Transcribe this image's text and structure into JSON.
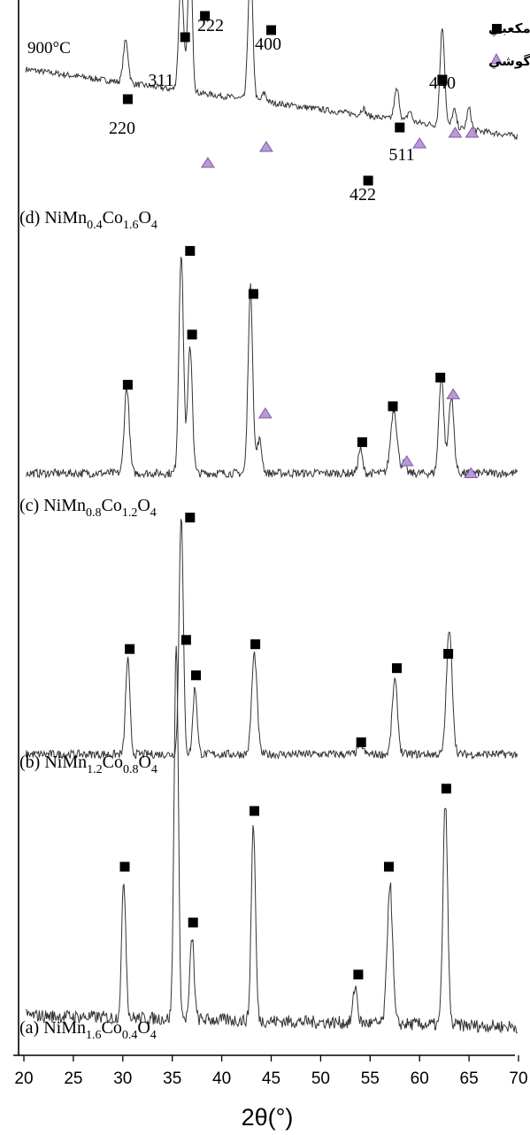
{
  "chart_data": {
    "type": "line",
    "title": "",
    "xlabel": "2θ(°)",
    "ylabel": "",
    "xlim": [
      20,
      70
    ],
    "xticks": [
      "20",
      "25",
      "30",
      "35",
      "40",
      "45",
      "50",
      "55",
      "60",
      "65",
      "70"
    ],
    "annotation_temperature": "900°C",
    "legend": [
      {
        "label": "مکعبي",
        "marker": "square",
        "color": "#000000"
      },
      {
        "label": "چارگوشي",
        "marker": "triangle",
        "color": "#b89ad6"
      }
    ],
    "hkl_labels": [
      {
        "text": "220",
        "x": 30.3
      },
      {
        "text": "311",
        "x": 35.7
      },
      {
        "text": "222",
        "x": 37.2
      },
      {
        "text": "400",
        "x": 43.3
      },
      {
        "text": "422",
        "x": 54.0
      },
      {
        "text": "511",
        "x": 57.3
      },
      {
        "text": "440",
        "x": 62.5
      }
    ],
    "series": [
      {
        "name": "(d) NiMn0.4Co1.6O4",
        "label_parts": {
          "a": "(d) NiMn",
          "s1": "0.4",
          "b": "Co",
          "s2": "1.6",
          "c": "O",
          "s3": "4"
        },
        "baseline_left": 0.66,
        "baseline_right": 0.28,
        "peaks": [
          {
            "x": 30.3,
            "h": 0.24,
            "w": 0.35
          },
          {
            "x": 35.9,
            "h": 0.62,
            "w": 0.35
          },
          {
            "x": 36.8,
            "h": 0.85,
            "w": 0.3
          },
          {
            "x": 42.9,
            "h": 0.78,
            "w": 0.33
          },
          {
            "x": 44.3,
            "h": 0.05,
            "w": 0.3
          },
          {
            "x": 54.3,
            "h": 0.04,
            "w": 0.3
          },
          {
            "x": 57.7,
            "h": 0.17,
            "w": 0.35
          },
          {
            "x": 59.0,
            "h": 0.06,
            "w": 0.3
          },
          {
            "x": 62.3,
            "h": 0.56,
            "w": 0.33
          },
          {
            "x": 63.5,
            "h": 0.1,
            "w": 0.3
          },
          {
            "x": 65.0,
            "h": 0.12,
            "w": 0.3
          }
        ],
        "cubic_markers": [
          30.5,
          36.3,
          38.3,
          45.0,
          54.8,
          58.0,
          62.3
        ],
        "cubic_levels": [
          0.49,
          0.84,
          0.96,
          0.88,
          0.03,
          0.33,
          0.6
        ],
        "tetragonal_markers": [
          38.6,
          44.5,
          60.0,
          63.6,
          65.3
        ],
        "tetragonal_levels": [
          0.13,
          0.22,
          0.24,
          0.3,
          0.3
        ]
      },
      {
        "name": "(c) NiMn0.8Co1.2O4",
        "label_parts": {
          "a": "(c) NiMn",
          "s1": "0.8",
          "b": "Co",
          "s2": "1.2",
          "c": "O",
          "s3": "4"
        },
        "baseline_left": 0.05,
        "baseline_right": 0.05,
        "peaks": [
          {
            "x": 30.4,
            "h": 0.36,
            "w": 0.35
          },
          {
            "x": 35.9,
            "h": 0.92,
            "w": 0.33
          },
          {
            "x": 36.8,
            "h": 0.53,
            "w": 0.33
          },
          {
            "x": 42.9,
            "h": 0.78,
            "w": 0.33
          },
          {
            "x": 43.8,
            "h": 0.14,
            "w": 0.35
          },
          {
            "x": 54.0,
            "h": 0.1,
            "w": 0.3
          },
          {
            "x": 57.4,
            "h": 0.27,
            "w": 0.45
          },
          {
            "x": 58.4,
            "h": 0.04,
            "w": 0.3
          },
          {
            "x": 62.2,
            "h": 0.41,
            "w": 0.35
          },
          {
            "x": 63.2,
            "h": 0.32,
            "w": 0.38
          }
        ],
        "cubic_markers": [
          30.5,
          36.8,
          37.0,
          43.2,
          54.2,
          57.3,
          62.1
        ],
        "cubic_levels": [
          0.42,
          0.98,
          0.63,
          0.8,
          0.18,
          0.33,
          0.45
        ],
        "tetragonal_markers": [
          44.4,
          58.7,
          63.4,
          65.2
        ],
        "tetragonal_levels": [
          0.2,
          0.04,
          0.35,
          0.0
        ],
        "tetragonal_levels_fix": [
          0.3,
          0.1,
          0.38,
          0.05
        ]
      },
      {
        "name": "(b) NiMn1.2Co0.8O4",
        "label_parts": {
          "a": "(b) NiMn",
          "s1": "1.2",
          "b": "Co",
          "s2": "0.8",
          "c": "O",
          "s3": "4"
        },
        "baseline_left": 0.03,
        "baseline_right": 0.03,
        "peaks": [
          {
            "x": 30.5,
            "h": 0.4,
            "w": 0.3
          },
          {
            "x": 35.9,
            "h": 1.0,
            "w": 0.3
          },
          {
            "x": 37.3,
            "h": 0.28,
            "w": 0.3
          },
          {
            "x": 43.3,
            "h": 0.42,
            "w": 0.38
          },
          {
            "x": 54.0,
            "h": 0.05,
            "w": 0.35
          },
          {
            "x": 57.5,
            "h": 0.31,
            "w": 0.38
          },
          {
            "x": 62.9,
            "h": 0.38,
            "w": 0.35
          },
          {
            "x": 63.2,
            "h": 0.23,
            "w": 0.35
          }
        ],
        "cubic_markers": [
          30.7,
          36.8,
          37.4,
          43.4,
          54.1,
          57.7,
          62.9
        ],
        "cubic_levels": [
          0.47,
          1.02,
          0.36,
          0.49,
          0.08,
          0.39,
          0.45
        ]
      },
      {
        "name": "(a) NiMn1.6Co0.4O4",
        "label_parts": {
          "a": "(a) NiMn",
          "s1": "1.6",
          "b": "Co",
          "s2": "0.4",
          "c": "O",
          "s3": "4"
        },
        "baseline_left": 0.05,
        "baseline_right": 0.02,
        "peaks": [
          {
            "x": 30.1,
            "h": 0.37,
            "w": 0.3
          },
          {
            "x": 35.4,
            "h": 1.02,
            "w": 0.3
          },
          {
            "x": 37.0,
            "h": 0.22,
            "w": 0.3
          },
          {
            "x": 43.2,
            "h": 0.53,
            "w": 0.3
          },
          {
            "x": 53.5,
            "h": 0.1,
            "w": 0.3
          },
          {
            "x": 57.0,
            "h": 0.38,
            "w": 0.38
          },
          {
            "x": 62.6,
            "h": 0.6,
            "w": 0.33
          }
        ],
        "cubic_markers": [
          30.2,
          36.4,
          37.1,
          43.3,
          53.8,
          56.9,
          62.7
        ],
        "cubic_levels": [
          0.45,
          1.06,
          0.3,
          0.6,
          0.16,
          0.45,
          0.66
        ]
      }
    ]
  }
}
